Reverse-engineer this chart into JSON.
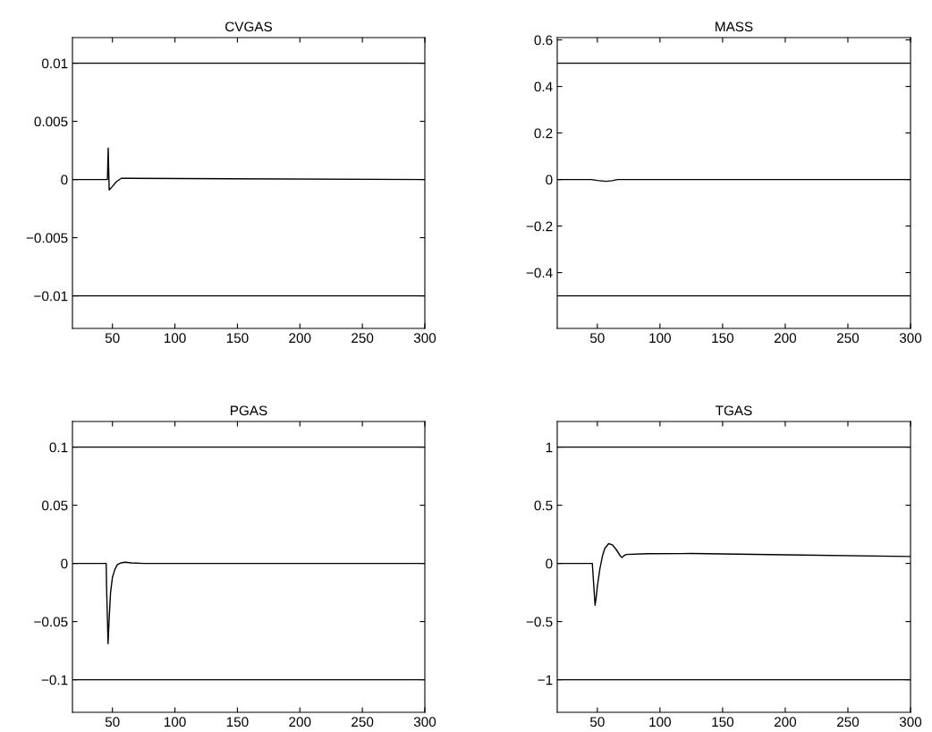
{
  "chart_data": [
    {
      "type": "line",
      "title": "CVGAS",
      "xlim": [
        18,
        300
      ],
      "xticks": [
        50,
        100,
        150,
        200,
        250,
        300
      ],
      "ylim": [
        -0.0128,
        0.0122
      ],
      "yticks": [
        {
          "value": -0.01,
          "label": "−0.01"
        },
        {
          "value": -0.005,
          "label": "−0.005"
        },
        0,
        0.005,
        0.01
      ],
      "grid": false,
      "ref_lines": [
        {
          "axis": "y",
          "value": 0.01,
          "color": "#000000"
        },
        {
          "axis": "y",
          "value": -0.01,
          "color": "#000000"
        }
      ],
      "series": [
        {
          "color": "#000000",
          "x": [
            18,
            46,
            46.6,
            47.4,
            50,
            53,
            57,
            62,
            300
          ],
          "values": [
            0,
            0,
            0.0027,
            -0.0009,
            -0.0006,
            -0.0002,
            0.0001,
            0.0001,
            0
          ]
        }
      ]
    },
    {
      "type": "line",
      "title": "MASS",
      "xlim": [
        18,
        300
      ],
      "xticks": [
        50,
        100,
        150,
        200,
        250,
        300
      ],
      "ylim": [
        -0.64,
        0.61
      ],
      "yticks": [
        {
          "value": -0.4,
          "label": "−0.4"
        },
        {
          "value": -0.2,
          "label": "−0.2"
        },
        0,
        0.2,
        0.4,
        0.6
      ],
      "grid": false,
      "ref_lines": [
        {
          "axis": "y",
          "value": 0.5,
          "color": "#000000"
        },
        {
          "axis": "y",
          "value": -0.5,
          "color": "#000000"
        }
      ],
      "series": [
        {
          "color": "#000000",
          "x": [
            18,
            45,
            50,
            57,
            62,
            66,
            300
          ],
          "values": [
            0,
            0,
            -0.004,
            -0.008,
            -0.005,
            0,
            0
          ]
        }
      ]
    },
    {
      "type": "line",
      "title": "PGAS",
      "xlim": [
        18,
        300
      ],
      "xticks": [
        50,
        100,
        150,
        200,
        250,
        300
      ],
      "ylim": [
        -0.128,
        0.122
      ],
      "yticks": [
        {
          "value": -0.1,
          "label": "−0.1"
        },
        {
          "value": -0.05,
          "label": "−0.05"
        },
        0,
        0.05,
        0.1
      ],
      "grid": false,
      "ref_lines": [
        {
          "axis": "y",
          "value": 0.1,
          "color": "#000000"
        },
        {
          "axis": "y",
          "value": -0.1,
          "color": "#000000"
        }
      ],
      "series": [
        {
          "color": "#000000",
          "x": [
            18,
            45,
            45.3,
            46.5,
            47.5,
            48.5,
            50,
            52,
            54,
            57,
            60,
            65,
            75,
            300
          ],
          "values": [
            0,
            0,
            -0.02,
            -0.069,
            -0.045,
            -0.025,
            -0.012,
            -0.005,
            -0.001,
            0.0005,
            0.001,
            0.0005,
            0,
            0
          ]
        }
      ]
    },
    {
      "type": "line",
      "title": "TGAS",
      "xlim": [
        18,
        300
      ],
      "xticks": [
        50,
        100,
        150,
        200,
        250,
        300
      ],
      "ylim": [
        -1.28,
        1.22
      ],
      "yticks": [
        {
          "value": -1,
          "label": "−1"
        },
        {
          "value": -0.5,
          "label": "−0.5"
        },
        0,
        0.5,
        1
      ],
      "grid": false,
      "ref_lines": [
        {
          "axis": "y",
          "value": 1,
          "color": "#000000"
        },
        {
          "axis": "y",
          "value": -1,
          "color": "#000000"
        }
      ],
      "series": [
        {
          "color": "#000000",
          "x": [
            18,
            46,
            48.2,
            49,
            50,
            52,
            54,
            56,
            59,
            62,
            65,
            68,
            69.6,
            71,
            73,
            90,
            125,
            200,
            300
          ],
          "values": [
            0,
            0,
            -0.36,
            -0.3,
            -0.2,
            -0.05,
            0.06,
            0.13,
            0.17,
            0.16,
            0.12,
            0.07,
            0.05,
            0.065,
            0.077,
            0.083,
            0.085,
            0.074,
            0.059
          ]
        }
      ]
    }
  ]
}
